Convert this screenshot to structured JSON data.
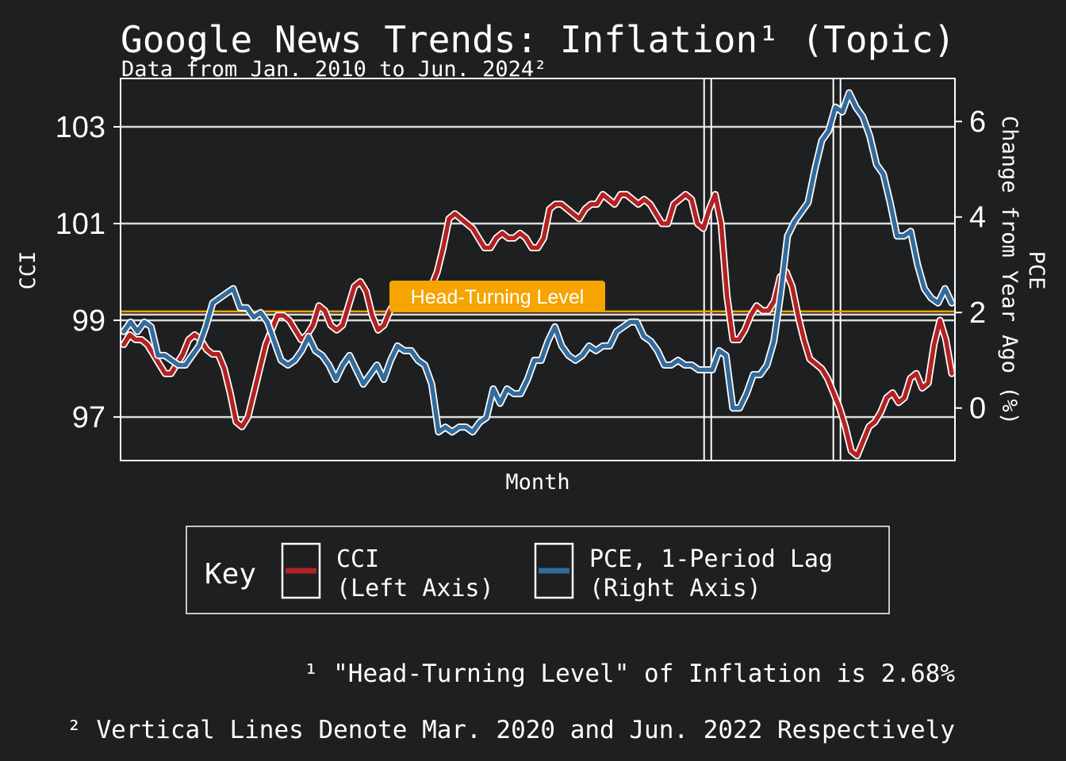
{
  "chart_data": {
    "type": "line",
    "title": "Google News Trends: Inflation¹ (Topic)",
    "subtitle": "Data from Jan. 2010 to Jun. 2024²",
    "xlabel": "Month",
    "ylabel_left": "CCI",
    "ylabel_right_line1": "PCE",
    "ylabel_right_line2": "Change from Year Ago (%)",
    "x_range": [
      "2010-01",
      "2024-06"
    ],
    "left_axis": {
      "ylim": [
        96.1,
        104.0
      ],
      "ticks": [
        97,
        99,
        101,
        103
      ],
      "tick_labels": [
        "97",
        "99",
        "101",
        "103"
      ]
    },
    "right_axis": {
      "ylim": [
        -1.1,
        6.9
      ],
      "ticks": [
        0,
        2,
        4,
        6
      ],
      "tick_labels": [
        "0",
        "2",
        "4",
        "6"
      ]
    },
    "grid": true,
    "legend_placement": "bottom",
    "legend_title": "Key",
    "series": [
      {
        "name": "CCI (Left Axis)",
        "label_line1": "CCI",
        "label_line2": "(Left Axis)",
        "axis": "left",
        "color": "#b22222",
        "values": [
          98.5,
          98.7,
          98.6,
          98.6,
          98.5,
          98.3,
          98.1,
          97.9,
          97.9,
          98.1,
          98.3,
          98.6,
          98.7,
          98.6,
          98.4,
          98.3,
          98.3,
          98.0,
          97.5,
          96.9,
          96.8,
          97.0,
          97.5,
          98.0,
          98.5,
          98.8,
          99.1,
          99.1,
          99.0,
          98.8,
          98.6,
          98.7,
          98.9,
          99.3,
          99.2,
          98.9,
          98.8,
          98.9,
          99.3,
          99.7,
          99.8,
          99.6,
          99.1,
          98.8,
          98.9,
          99.2,
          99.4,
          99.5,
          99.6,
          99.6,
          99.6,
          99.6,
          99.7,
          100.0,
          100.5,
          101.1,
          101.2,
          101.1,
          101.0,
          100.9,
          100.7,
          100.5,
          100.5,
          100.7,
          100.8,
          100.7,
          100.7,
          100.8,
          100.7,
          100.5,
          100.5,
          100.7,
          101.3,
          101.4,
          101.4,
          101.3,
          101.2,
          101.1,
          101.3,
          101.4,
          101.4,
          101.6,
          101.5,
          101.4,
          101.6,
          101.6,
          101.5,
          101.4,
          101.5,
          101.4,
          101.2,
          101.0,
          101.0,
          101.4,
          101.5,
          101.6,
          101.5,
          101.0,
          100.9,
          101.3,
          101.6,
          101.0,
          99.5,
          98.6,
          98.6,
          98.8,
          99.1,
          99.3,
          99.2,
          99.2,
          99.4,
          99.9,
          100.0,
          99.7,
          99.1,
          98.6,
          98.2,
          98.1,
          98.0,
          97.8,
          97.5,
          97.2,
          96.8,
          96.3,
          96.2,
          96.5,
          96.8,
          96.9,
          97.1,
          97.4,
          97.5,
          97.3,
          97.4,
          97.8,
          97.9,
          97.6,
          97.7,
          98.5,
          99.0,
          98.6,
          97.9
        ]
      },
      {
        "name": "PCE, 1-Period Lag (Right Axis)",
        "label_line1": "PCE, 1-Period Lag",
        "label_line2": "(Right Axis)",
        "axis": "right",
        "color": "#336b9c",
        "values": [
          1.6,
          1.8,
          1.6,
          1.8,
          1.7,
          1.1,
          1.1,
          1.0,
          0.9,
          0.9,
          1.1,
          1.3,
          1.7,
          2.2,
          2.3,
          2.4,
          2.5,
          2.1,
          2.1,
          1.9,
          2.0,
          1.8,
          1.4,
          1.0,
          0.9,
          1.0,
          1.2,
          1.5,
          1.2,
          1.1,
          0.9,
          0.6,
          0.9,
          1.1,
          0.8,
          0.5,
          0.7,
          0.9,
          0.6,
          1.0,
          1.3,
          1.2,
          1.2,
          1.0,
          0.9,
          0.5,
          -0.5,
          -0.4,
          -0.5,
          -0.4,
          -0.4,
          -0.5,
          -0.3,
          -0.2,
          0.4,
          0.1,
          0.4,
          0.3,
          0.3,
          0.6,
          1.0,
          1.0,
          1.4,
          1.7,
          1.3,
          1.1,
          1.0,
          1.1,
          1.3,
          1.2,
          1.3,
          1.3,
          1.6,
          1.7,
          1.8,
          1.8,
          1.5,
          1.4,
          1.2,
          0.9,
          0.9,
          1.0,
          0.9,
          0.9,
          0.8,
          0.8,
          0.8,
          1.2,
          1.1,
          0.0,
          0.0,
          0.3,
          0.7,
          0.7,
          0.9,
          1.4,
          2.4,
          3.6,
          3.9,
          4.1,
          4.3,
          5.0,
          5.6,
          5.8,
          6.3,
          6.2,
          6.6,
          6.3,
          6.1,
          5.7,
          5.1,
          4.9,
          4.3,
          3.6,
          3.6,
          3.7,
          3.0,
          2.5,
          2.3,
          2.2,
          2.5,
          2.2
        ]
      }
    ],
    "reference_line": {
      "label": "Head-Turning Level",
      "value": 2.68,
      "axis": "left",
      "level": 99.15,
      "color": "#f5a400"
    },
    "vertical_lines": [
      "Mar. 2020",
      "Jun. 2022"
    ],
    "annotations": {
      "note1": "¹ \"Head-Turning Level\" of Inflation is 2.68%",
      "note2": "² Vertical Lines Denote Mar. 2020 and Jun. 2022 Respectively"
    }
  },
  "colors": {
    "background": "#1e1f21",
    "foreground": "#ffffff",
    "grid": "#d9d9d9"
  }
}
